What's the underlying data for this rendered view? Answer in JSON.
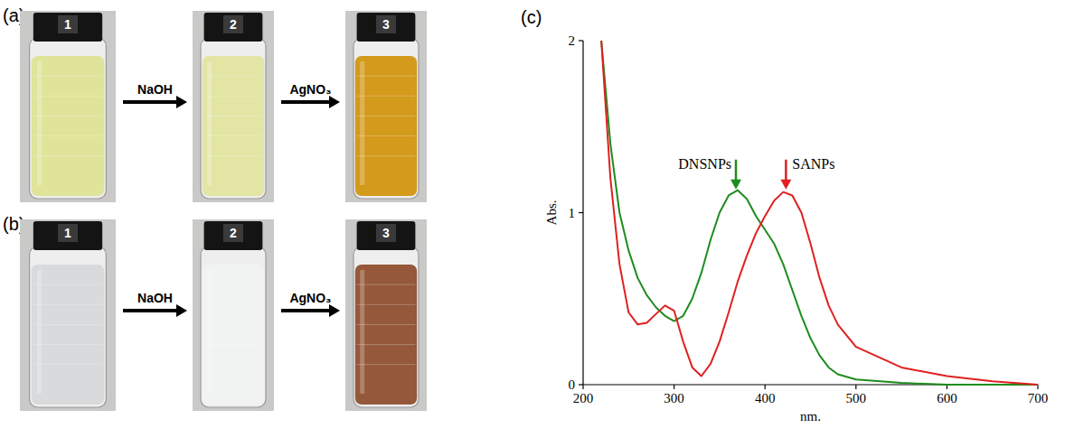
{
  "panels": [
    {
      "label": "(a)",
      "reagents": [
        "NaOH",
        "AgNO₃"
      ],
      "vials": [
        {
          "number": "1",
          "color": "#dfe49a"
        },
        {
          "number": "2",
          "color": "#e2e5a3"
        },
        {
          "number": "3",
          "color": "#d39a1c"
        }
      ]
    },
    {
      "label": "(b)",
      "reagents": [
        "NaOH",
        "AgNO₃"
      ],
      "vials": [
        {
          "number": "1",
          "color": "#d9dadb"
        },
        {
          "number": "2",
          "color": "#f1f3f3"
        },
        {
          "number": "3",
          "color": "#95583a"
        }
      ]
    }
  ],
  "chart_data": {
    "panel_label": "(c)",
    "type": "line",
    "x_label": "nm.",
    "y_label": "Abs.",
    "x": [
      220,
      230,
      240,
      250,
      260,
      270,
      280,
      290,
      300,
      310,
      320,
      330,
      340,
      350,
      360,
      370,
      380,
      390,
      400,
      410,
      420,
      430,
      440,
      450,
      460,
      470,
      480,
      500,
      550,
      600,
      650,
      700
    ],
    "series": [
      {
        "name": "DNSNPs",
        "color": "#1e8c1e",
        "values": [
          2.0,
          1.4,
          1.0,
          0.78,
          0.62,
          0.52,
          0.45,
          0.4,
          0.37,
          0.4,
          0.5,
          0.65,
          0.84,
          1.0,
          1.1,
          1.13,
          1.08,
          0.98,
          0.9,
          0.82,
          0.7,
          0.55,
          0.4,
          0.27,
          0.17,
          0.1,
          0.06,
          0.03,
          0.01,
          0.0,
          0.0,
          0.0
        ]
      },
      {
        "name": "SANPs",
        "color": "#e02020",
        "values": [
          2.0,
          1.2,
          0.7,
          0.42,
          0.35,
          0.36,
          0.41,
          0.46,
          0.43,
          0.25,
          0.1,
          0.05,
          0.12,
          0.25,
          0.42,
          0.6,
          0.75,
          0.88,
          0.98,
          1.07,
          1.12,
          1.1,
          1.0,
          0.82,
          0.62,
          0.46,
          0.35,
          0.22,
          0.1,
          0.05,
          0.02,
          0.0
        ]
      }
    ],
    "annotations": [
      {
        "text": "DNSNPs",
        "x": 368,
        "y": 1.13,
        "color": "#1e8c1e"
      },
      {
        "text": "SANPs",
        "x": 423,
        "y": 1.13,
        "color": "#e02020"
      }
    ],
    "xlim": [
      200,
      700
    ],
    "ylim": [
      0,
      2
    ],
    "xticks": [
      200,
      300,
      400,
      500,
      600,
      700
    ],
    "yticks": [
      0,
      1,
      2
    ],
    "grid": false
  }
}
